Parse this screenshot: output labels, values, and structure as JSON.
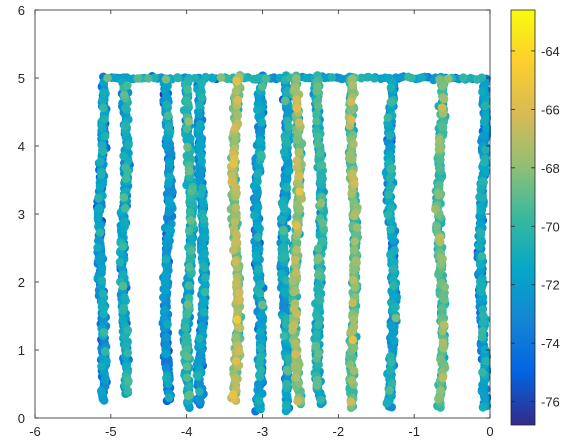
{
  "chart_data": {
    "type": "scatter",
    "title": "",
    "xlabel": "",
    "ylabel": "",
    "xlim": [
      -6,
      0
    ],
    "ylim": [
      0,
      6
    ],
    "x_ticks": [
      -6,
      -5,
      -4,
      -3,
      -2,
      -1,
      0
    ],
    "x_tick_labels": [
      "-6",
      "-5",
      "-4",
      "-3",
      "-2",
      "-1",
      "0"
    ],
    "y_ticks": [
      0,
      1,
      2,
      3,
      4,
      5,
      6
    ],
    "y_tick_labels": [
      "0",
      "1",
      "2",
      "3",
      "4",
      "5",
      "6"
    ],
    "grid": false,
    "colormap": "parula",
    "colorbar": {
      "range": [
        -76.8,
        -62.6
      ],
      "ticks": [
        -76,
        -74,
        -72,
        -70,
        -68,
        -66,
        -64
      ],
      "tick_labels": [
        "-76",
        "-74",
        "-72",
        "-70",
        "-68",
        "-66",
        "-64"
      ]
    },
    "marker": "filled-circle",
    "series": [
      {
        "x": -5.12,
        "y_range": [
          0.25,
          4.95
        ],
        "value_mean": -73.0
      },
      {
        "x": -4.82,
        "y_range": [
          0.35,
          4.95
        ],
        "value_mean": -72.3
      },
      {
        "x": -4.25,
        "y_range": [
          0.25,
          5.0
        ],
        "value_mean": -73.3
      },
      {
        "x": -3.97,
        "y_range": [
          0.15,
          5.0
        ],
        "value_mean": -71.4
      },
      {
        "x": -3.8,
        "y_range": [
          0.2,
          5.0
        ],
        "value_mean": -72.8
      },
      {
        "x": -3.35,
        "y_range": [
          0.25,
          5.05
        ],
        "value_mean": -68.3
      },
      {
        "x": -3.05,
        "y_range": [
          0.1,
          5.05
        ],
        "value_mean": -72.6
      },
      {
        "x": -2.7,
        "y_range": [
          0.1,
          5.05
        ],
        "value_mean": -72.1
      },
      {
        "x": -2.55,
        "y_range": [
          0.2,
          5.05
        ],
        "value_mean": -68.8
      },
      {
        "x": -2.25,
        "y_range": [
          0.2,
          5.05
        ],
        "value_mean": -71.1
      },
      {
        "x": -1.8,
        "y_range": [
          0.15,
          5.0
        ],
        "value_mean": -69.4
      },
      {
        "x": -1.3,
        "y_range": [
          0.15,
          5.0
        ],
        "value_mean": -72.3
      },
      {
        "x": -0.65,
        "y_range": [
          0.15,
          5.0
        ],
        "value_mean": -69.6
      },
      {
        "x": -0.1,
        "y_range": [
          0.15,
          5.0
        ],
        "value_mean": -72.6
      }
    ],
    "top_band": {
      "x_range": [
        -5.12,
        -0.1
      ],
      "y": 5.0,
      "value_mean": -71.5
    }
  },
  "colors": {
    "axis": "#262626",
    "background": "#ffffff",
    "parula_stops": [
      "#352a87",
      "#0363e1",
      "#1485d4",
      "#06a7c6",
      "#38b99e",
      "#92bf73",
      "#d9ba56",
      "#fcce2e",
      "#f9fb0e"
    ]
  }
}
